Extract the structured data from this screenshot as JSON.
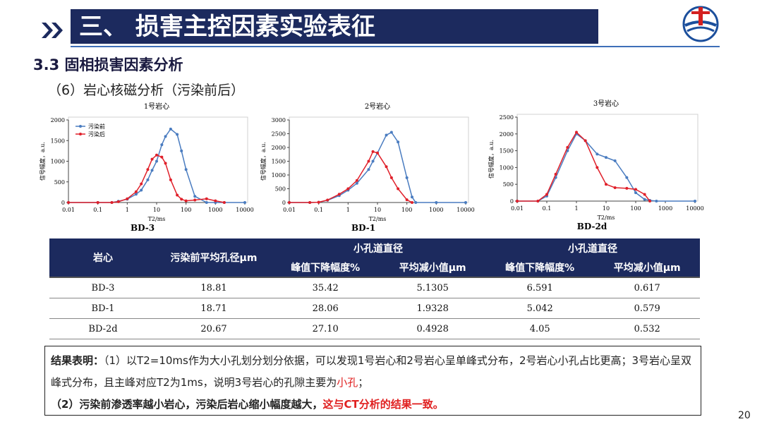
{
  "header": {
    "title": "三、 损害主控因素实验表征",
    "section": "3.3 固相损害因素分析",
    "subsection": "（6）岩心核磁分析（污染前后）"
  },
  "chart_data": [
    {
      "type": "line",
      "title": "1号岩心",
      "caption": "BD-3",
      "x_label": "T2/ms",
      "y_label": "信号幅度，a.u.",
      "xscale": "log",
      "legend": "upper left",
      "xlim": [
        0.01,
        10000
      ],
      "xticks": [
        0.01,
        0.1,
        1,
        10,
        100,
        1000,
        10000
      ],
      "ylim": [
        0,
        2000
      ],
      "yticks": [
        0,
        500,
        1000,
        1500,
        2000
      ],
      "x": [
        0.01,
        0.1,
        0.3,
        0.5,
        1,
        2,
        3,
        5,
        7,
        10,
        15,
        20,
        30,
        50,
        70,
        100,
        200,
        500,
        1000,
        2000,
        10000
      ],
      "series": [
        {
          "name": "污染前",
          "color": "#4a7cc0",
          "values": [
            0,
            0,
            0,
            30,
            80,
            200,
            300,
            550,
            780,
            1000,
            1400,
            1600,
            1780,
            1650,
            1250,
            800,
            150,
            0,
            0,
            0,
            0
          ]
        },
        {
          "name": "污染后",
          "color": "#e0202a",
          "values": [
            0,
            0,
            0,
            20,
            90,
            260,
            450,
            800,
            1050,
            1150,
            1100,
            950,
            550,
            180,
            80,
            40,
            60,
            90,
            40,
            0,
            null
          ]
        }
      ]
    },
    {
      "type": "line",
      "title": "2号岩心",
      "caption": "BD-1",
      "x_label": "T2/ms",
      "y_label": "信号幅度，a.u.",
      "xscale": "log",
      "xlim": [
        0.01,
        10000
      ],
      "xticks": [
        0.01,
        0.1,
        1,
        10,
        100,
        1000,
        10000
      ],
      "ylim": [
        0,
        3000
      ],
      "yticks": [
        0,
        500,
        1000,
        1500,
        2000,
        2500,
        3000
      ],
      "x": [
        0.01,
        0.05,
        0.1,
        0.2,
        0.5,
        1,
        2,
        5,
        7,
        10,
        20,
        30,
        50,
        100,
        150,
        200,
        1000,
        10000
      ],
      "series": [
        {
          "color": "#4a7cc0",
          "values": [
            0,
            0,
            10,
            80,
            250,
            450,
            700,
            1200,
            1500,
            1800,
            2450,
            2550,
            2200,
            900,
            200,
            0,
            0,
            0
          ]
        },
        {
          "color": "#e0202a",
          "values": [
            0,
            0,
            10,
            90,
            300,
            500,
            800,
            1500,
            1850,
            1800,
            1300,
            900,
            500,
            100,
            0,
            null,
            null,
            null
          ]
        }
      ]
    },
    {
      "type": "line",
      "title": "3号岩心",
      "caption": "BD-2d",
      "x_label": "T2/ms",
      "y_label": "信号幅度，a.u.",
      "xscale": "log",
      "xlim": [
        0.01,
        10000
      ],
      "xticks": [
        0.01,
        0.1,
        1,
        10,
        100,
        1000,
        10000
      ],
      "ylim": [
        0,
        2500
      ],
      "yticks": [
        0,
        500,
        1000,
        1500,
        2000,
        2500
      ],
      "x": [
        0.01,
        0.05,
        0.1,
        0.2,
        0.5,
        1,
        2,
        5,
        10,
        20,
        50,
        100,
        200,
        300,
        500,
        10000
      ],
      "series": [
        {
          "color": "#4a7cc0",
          "values": [
            0,
            0,
            150,
            700,
            1500,
            2000,
            1800,
            1400,
            1300,
            1200,
            700,
            250,
            50,
            20,
            0,
            0
          ]
        },
        {
          "color": "#e0202a",
          "values": [
            0,
            0,
            200,
            800,
            1600,
            2050,
            1800,
            1000,
            500,
            400,
            380,
            350,
            200,
            0,
            null,
            null
          ]
        }
      ]
    }
  ],
  "table": {
    "header": [
      "岩心",
      "污染前平均孔径μm",
      "小孔道直径",
      "小孔道直径"
    ],
    "subheader": [
      "峰值下降幅度%",
      "平均减小值μm",
      "峰值下降幅度%",
      "平均减小值μm"
    ],
    "rows": [
      [
        "BD-3",
        "18.81",
        "35.42",
        "5.1305",
        "6.591",
        "0.617"
      ],
      [
        "BD-1",
        "18.71",
        "28.06",
        "1.9328",
        "5.042",
        "0.579"
      ],
      [
        "BD-2d",
        "20.67",
        "27.10",
        "0.4928",
        "4.05",
        "0.532"
      ]
    ]
  },
  "conclusion": {
    "lead": "结果表明：",
    "p1": "（1）以T2=10ms作为大小孔划分划分依据，可以发现1号岩心和2号岩心呈单峰式分布，2号岩心小孔占比更高；3号岩心呈双峰式分布，且主峰对应T2为1ms，说明3号岩心的孔隙主要为",
    "p1_highlight": "小孔",
    "p1_end": "；",
    "p2": "（2）污染前渗透率越小岩心，污染后岩心缩小幅度越大，",
    "p2_highlight": "这与CT分析的结果一致。"
  },
  "page_number": "20"
}
